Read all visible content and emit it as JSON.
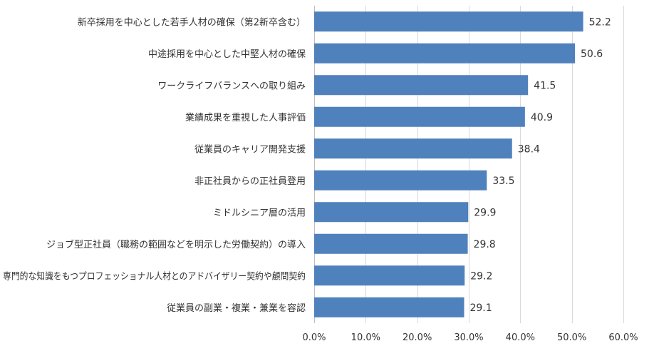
{
  "chart_data": {
    "type": "bar",
    "orientation": "horizontal",
    "categories": [
      "新卒採用を中心とした若手人材の確保（第2新卒含む）",
      "中途採用を中心とした中堅人材の確保",
      "ワークライフバランスへの取り組み",
      "業績成果を重視した人事評価",
      "従業員のキャリア開発支援",
      "非正社員からの正社員登用",
      "ミドルシニア層の活用",
      "ジョブ型正社員（職務の範囲などを明示した労働契約）の導入",
      "専門的な知識をもつプロフェッショナル人材とのアドバイザリー契約や顧問契約",
      "従業員の副業・複業・兼業を容認"
    ],
    "values": [
      52.2,
      50.6,
      41.5,
      40.9,
      38.4,
      33.5,
      29.9,
      29.8,
      29.2,
      29.1
    ],
    "value_labels": [
      "52.2",
      "50.6",
      "41.5",
      "40.9",
      "38.4",
      "33.5",
      "29.9",
      "29.8",
      "29.2",
      "29.1"
    ],
    "xlim": [
      0,
      60
    ],
    "xticks": [
      0,
      10,
      20,
      30,
      40,
      50,
      60
    ],
    "xtick_labels": [
      "0.0%",
      "10.0%",
      "20.0%",
      "30.0%",
      "40.0%",
      "50.0%",
      "60.0%"
    ],
    "grid": true,
    "legend": "none",
    "bar_color": "#4f81bd"
  }
}
